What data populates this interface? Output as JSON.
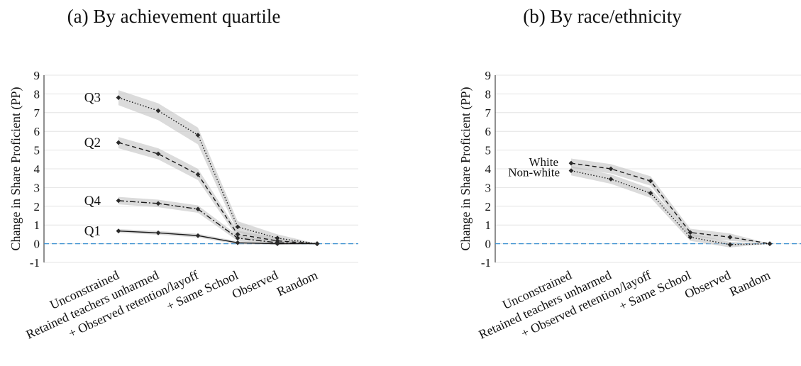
{
  "chart_data": [
    {
      "type": "line",
      "title": "(a) By achievement quartile",
      "xlabel": "",
      "ylabel": "Change in Share Proficient (PP)",
      "ylim": [
        -1,
        9
      ],
      "yticks": [
        -1,
        0,
        1,
        2,
        3,
        4,
        5,
        6,
        7,
        8,
        9
      ],
      "categories": [
        "Unconstrained",
        "Retained teachers unharmed",
        "+ Observed retention/layoff",
        "+ Same School",
        "Observed",
        "Random"
      ],
      "grid": true,
      "reference_line": 0,
      "series": [
        {
          "name": "Q3",
          "style": "dotted",
          "values": [
            7.8,
            7.1,
            5.8,
            0.9,
            0.3,
            0.0
          ],
          "lower": [
            7.4,
            6.6,
            5.3,
            0.6,
            0.1,
            0.0
          ],
          "upper": [
            8.2,
            7.5,
            6.2,
            1.2,
            0.5,
            0.0
          ]
        },
        {
          "name": "Q2",
          "style": "dashed",
          "values": [
            5.4,
            4.8,
            3.7,
            0.5,
            0.15,
            0.0
          ],
          "lower": [
            5.1,
            4.5,
            3.4,
            0.3,
            0.0,
            0.0
          ],
          "upper": [
            5.7,
            5.1,
            4.0,
            0.7,
            0.3,
            0.0
          ]
        },
        {
          "name": "Q4",
          "style": "dash-dot",
          "values": [
            2.3,
            2.15,
            1.85,
            0.3,
            0.05,
            0.0
          ],
          "lower": [
            2.1,
            1.95,
            1.65,
            0.15,
            -0.05,
            0.0
          ],
          "upper": [
            2.5,
            2.35,
            2.05,
            0.45,
            0.15,
            0.0
          ]
        },
        {
          "name": "Q1",
          "style": "solid",
          "values": [
            0.68,
            0.58,
            0.43,
            0.05,
            0.0,
            0.0
          ],
          "lower": [
            0.58,
            0.48,
            0.33,
            -0.03,
            -0.05,
            0.0
          ],
          "upper": [
            0.78,
            0.68,
            0.53,
            0.13,
            0.05,
            0.0
          ]
        }
      ]
    },
    {
      "type": "line",
      "title": "(b) By race/ethnicity",
      "xlabel": "",
      "ylabel": "Change in Share Proficient (PP)",
      "ylim": [
        -1,
        9
      ],
      "yticks": [
        -1,
        0,
        1,
        2,
        3,
        4,
        5,
        6,
        7,
        8,
        9
      ],
      "categories": [
        "Unconstrained",
        "Retained teachers unharmed",
        "+ Observed retention/layoff",
        "+ Same School",
        "Observed",
        "Random"
      ],
      "grid": true,
      "reference_line": 0,
      "series": [
        {
          "name": "White",
          "style": "dashed",
          "values": [
            4.3,
            4.0,
            3.35,
            0.6,
            0.35,
            0.0
          ],
          "lower": [
            4.05,
            3.75,
            3.1,
            0.4,
            0.15,
            0.0
          ],
          "upper": [
            4.55,
            4.25,
            3.6,
            0.8,
            0.55,
            0.0
          ]
        },
        {
          "name": "Non-white",
          "style": "dotted",
          "values": [
            3.9,
            3.45,
            2.7,
            0.35,
            -0.05,
            0.0
          ],
          "lower": [
            3.65,
            3.2,
            2.45,
            0.15,
            -0.2,
            0.0
          ],
          "upper": [
            4.15,
            3.7,
            2.95,
            0.55,
            0.1,
            0.0
          ]
        }
      ]
    }
  ]
}
